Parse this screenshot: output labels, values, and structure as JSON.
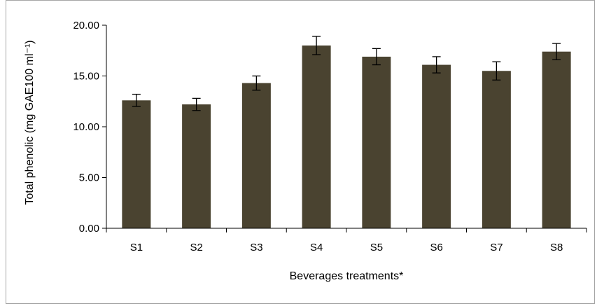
{
  "chart_data": {
    "type": "bar",
    "title": "",
    "xlabel": "Beverages treatments*",
    "ylabel": "Total phenolic (mg GAE100 ml⁻¹)",
    "categories": [
      "S1",
      "S2",
      "S3",
      "S4",
      "S5",
      "S6",
      "S7",
      "S8"
    ],
    "values": [
      12.6,
      12.2,
      14.3,
      18.0,
      16.9,
      16.1,
      15.5,
      17.4
    ],
    "errors": [
      0.6,
      0.6,
      0.7,
      0.9,
      0.8,
      0.8,
      0.9,
      0.8
    ],
    "ylim": [
      0,
      20
    ],
    "yticks": [
      "0.00",
      "5.00",
      "10.00",
      "15.00",
      "20.00"
    ],
    "ytick_values": [
      0,
      5,
      10,
      15,
      20
    ],
    "bar_color": "#4a4330",
    "grid": false,
    "legend": "none"
  }
}
